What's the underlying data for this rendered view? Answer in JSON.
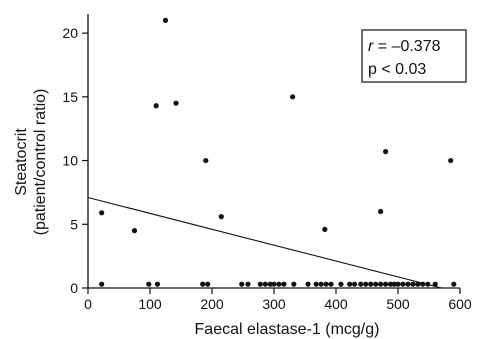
{
  "chart_data": {
    "type": "scatter",
    "xlabel": "Faecal elastase-1 (mcg/g)",
    "ylabel_lines": [
      "Steatocrit",
      "(patient/control ratio)"
    ],
    "xlim": [
      0,
      600
    ],
    "ylim": [
      0,
      21.5
    ],
    "x_ticks": [
      0,
      100,
      200,
      300,
      400,
      500,
      600
    ],
    "y_ticks": [
      0,
      5,
      10,
      15,
      20
    ],
    "grid": false,
    "points": [
      {
        "x": 22,
        "y": 5.9
      },
      {
        "x": 75,
        "y": 4.5
      },
      {
        "x": 110,
        "y": 14.3
      },
      {
        "x": 125,
        "y": 21.0
      },
      {
        "x": 142,
        "y": 14.5
      },
      {
        "x": 190,
        "y": 10.0
      },
      {
        "x": 215,
        "y": 5.6
      },
      {
        "x": 330,
        "y": 15.0
      },
      {
        "x": 382,
        "y": 4.6
      },
      {
        "x": 472,
        "y": 6.0
      },
      {
        "x": 480,
        "y": 10.7
      },
      {
        "x": 585,
        "y": 10.0
      },
      {
        "x": 22,
        "y": 0.3
      },
      {
        "x": 98,
        "y": 0.3
      },
      {
        "x": 112,
        "y": 0.3
      },
      {
        "x": 185,
        "y": 0.3
      },
      {
        "x": 193,
        "y": 0.3
      },
      {
        "x": 248,
        "y": 0.3
      },
      {
        "x": 258,
        "y": 0.3
      },
      {
        "x": 278,
        "y": 0.3
      },
      {
        "x": 286,
        "y": 0.3
      },
      {
        "x": 294,
        "y": 0.3
      },
      {
        "x": 300,
        "y": 0.3
      },
      {
        "x": 308,
        "y": 0.3
      },
      {
        "x": 316,
        "y": 0.3
      },
      {
        "x": 332,
        "y": 0.3
      },
      {
        "x": 355,
        "y": 0.3
      },
      {
        "x": 368,
        "y": 0.3
      },
      {
        "x": 376,
        "y": 0.3
      },
      {
        "x": 384,
        "y": 0.3
      },
      {
        "x": 392,
        "y": 0.3
      },
      {
        "x": 408,
        "y": 0.3
      },
      {
        "x": 422,
        "y": 0.3
      },
      {
        "x": 430,
        "y": 0.3
      },
      {
        "x": 440,
        "y": 0.3
      },
      {
        "x": 448,
        "y": 0.3
      },
      {
        "x": 456,
        "y": 0.3
      },
      {
        "x": 464,
        "y": 0.3
      },
      {
        "x": 472,
        "y": 0.3
      },
      {
        "x": 480,
        "y": 0.3
      },
      {
        "x": 488,
        "y": 0.3
      },
      {
        "x": 494,
        "y": 0.3
      },
      {
        "x": 500,
        "y": 0.3
      },
      {
        "x": 508,
        "y": 0.3
      },
      {
        "x": 516,
        "y": 0.3
      },
      {
        "x": 524,
        "y": 0.3
      },
      {
        "x": 532,
        "y": 0.3
      },
      {
        "x": 540,
        "y": 0.3
      },
      {
        "x": 548,
        "y": 0.3
      },
      {
        "x": 560,
        "y": 0.3
      },
      {
        "x": 590,
        "y": 0.3
      }
    ],
    "regression_line": {
      "x1": 0,
      "y1": 7.1,
      "x2": 570,
      "y2": 0
    }
  },
  "stats": {
    "r_symbol": "r",
    "r_value": " = –0.378",
    "p_text": "p < 0.03"
  },
  "colors": {
    "ink": "#111111",
    "background": "#ffffff"
  }
}
